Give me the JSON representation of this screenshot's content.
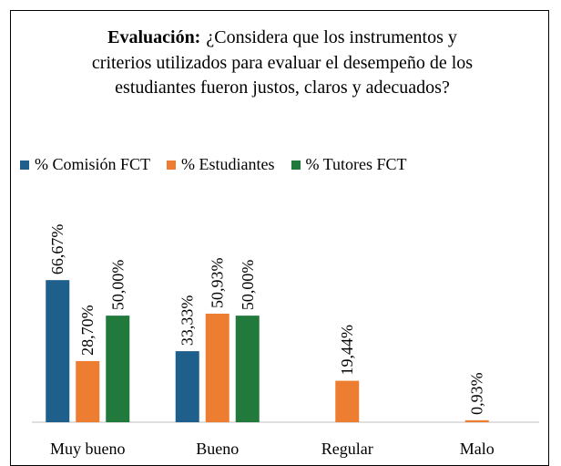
{
  "chart_data": {
    "type": "bar",
    "title_label": "Evaluación:",
    "title": "¿Considera que los instrumentos y criterios utilizados para evaluar el desempeño de los estudiantes fueron justos, claros y adecuados?",
    "categories": [
      "Muy bueno",
      "Bueno",
      "Regular",
      "Malo"
    ],
    "series": [
      {
        "name": "% Comisión FCT",
        "color": "#1f5f8b",
        "values": [
          66.67,
          33.33,
          null,
          null
        ],
        "value_labels": [
          "66,67%",
          "33,33%",
          null,
          null
        ]
      },
      {
        "name": "% Estudiantes",
        "color": "#ed7d31",
        "values": [
          28.7,
          50.93,
          19.44,
          0.93
        ],
        "value_labels": [
          "28,70%",
          "50,93%",
          "19,44%",
          "0,93%"
        ]
      },
      {
        "name": "% Tutores FCT",
        "color": "#217a3b",
        "values": [
          50.0,
          50.0,
          null,
          null
        ],
        "value_labels": [
          "50,00%",
          "50,00%",
          null,
          null
        ]
      }
    ],
    "ylim": [
      0,
      80
    ],
    "legend": "top"
  }
}
